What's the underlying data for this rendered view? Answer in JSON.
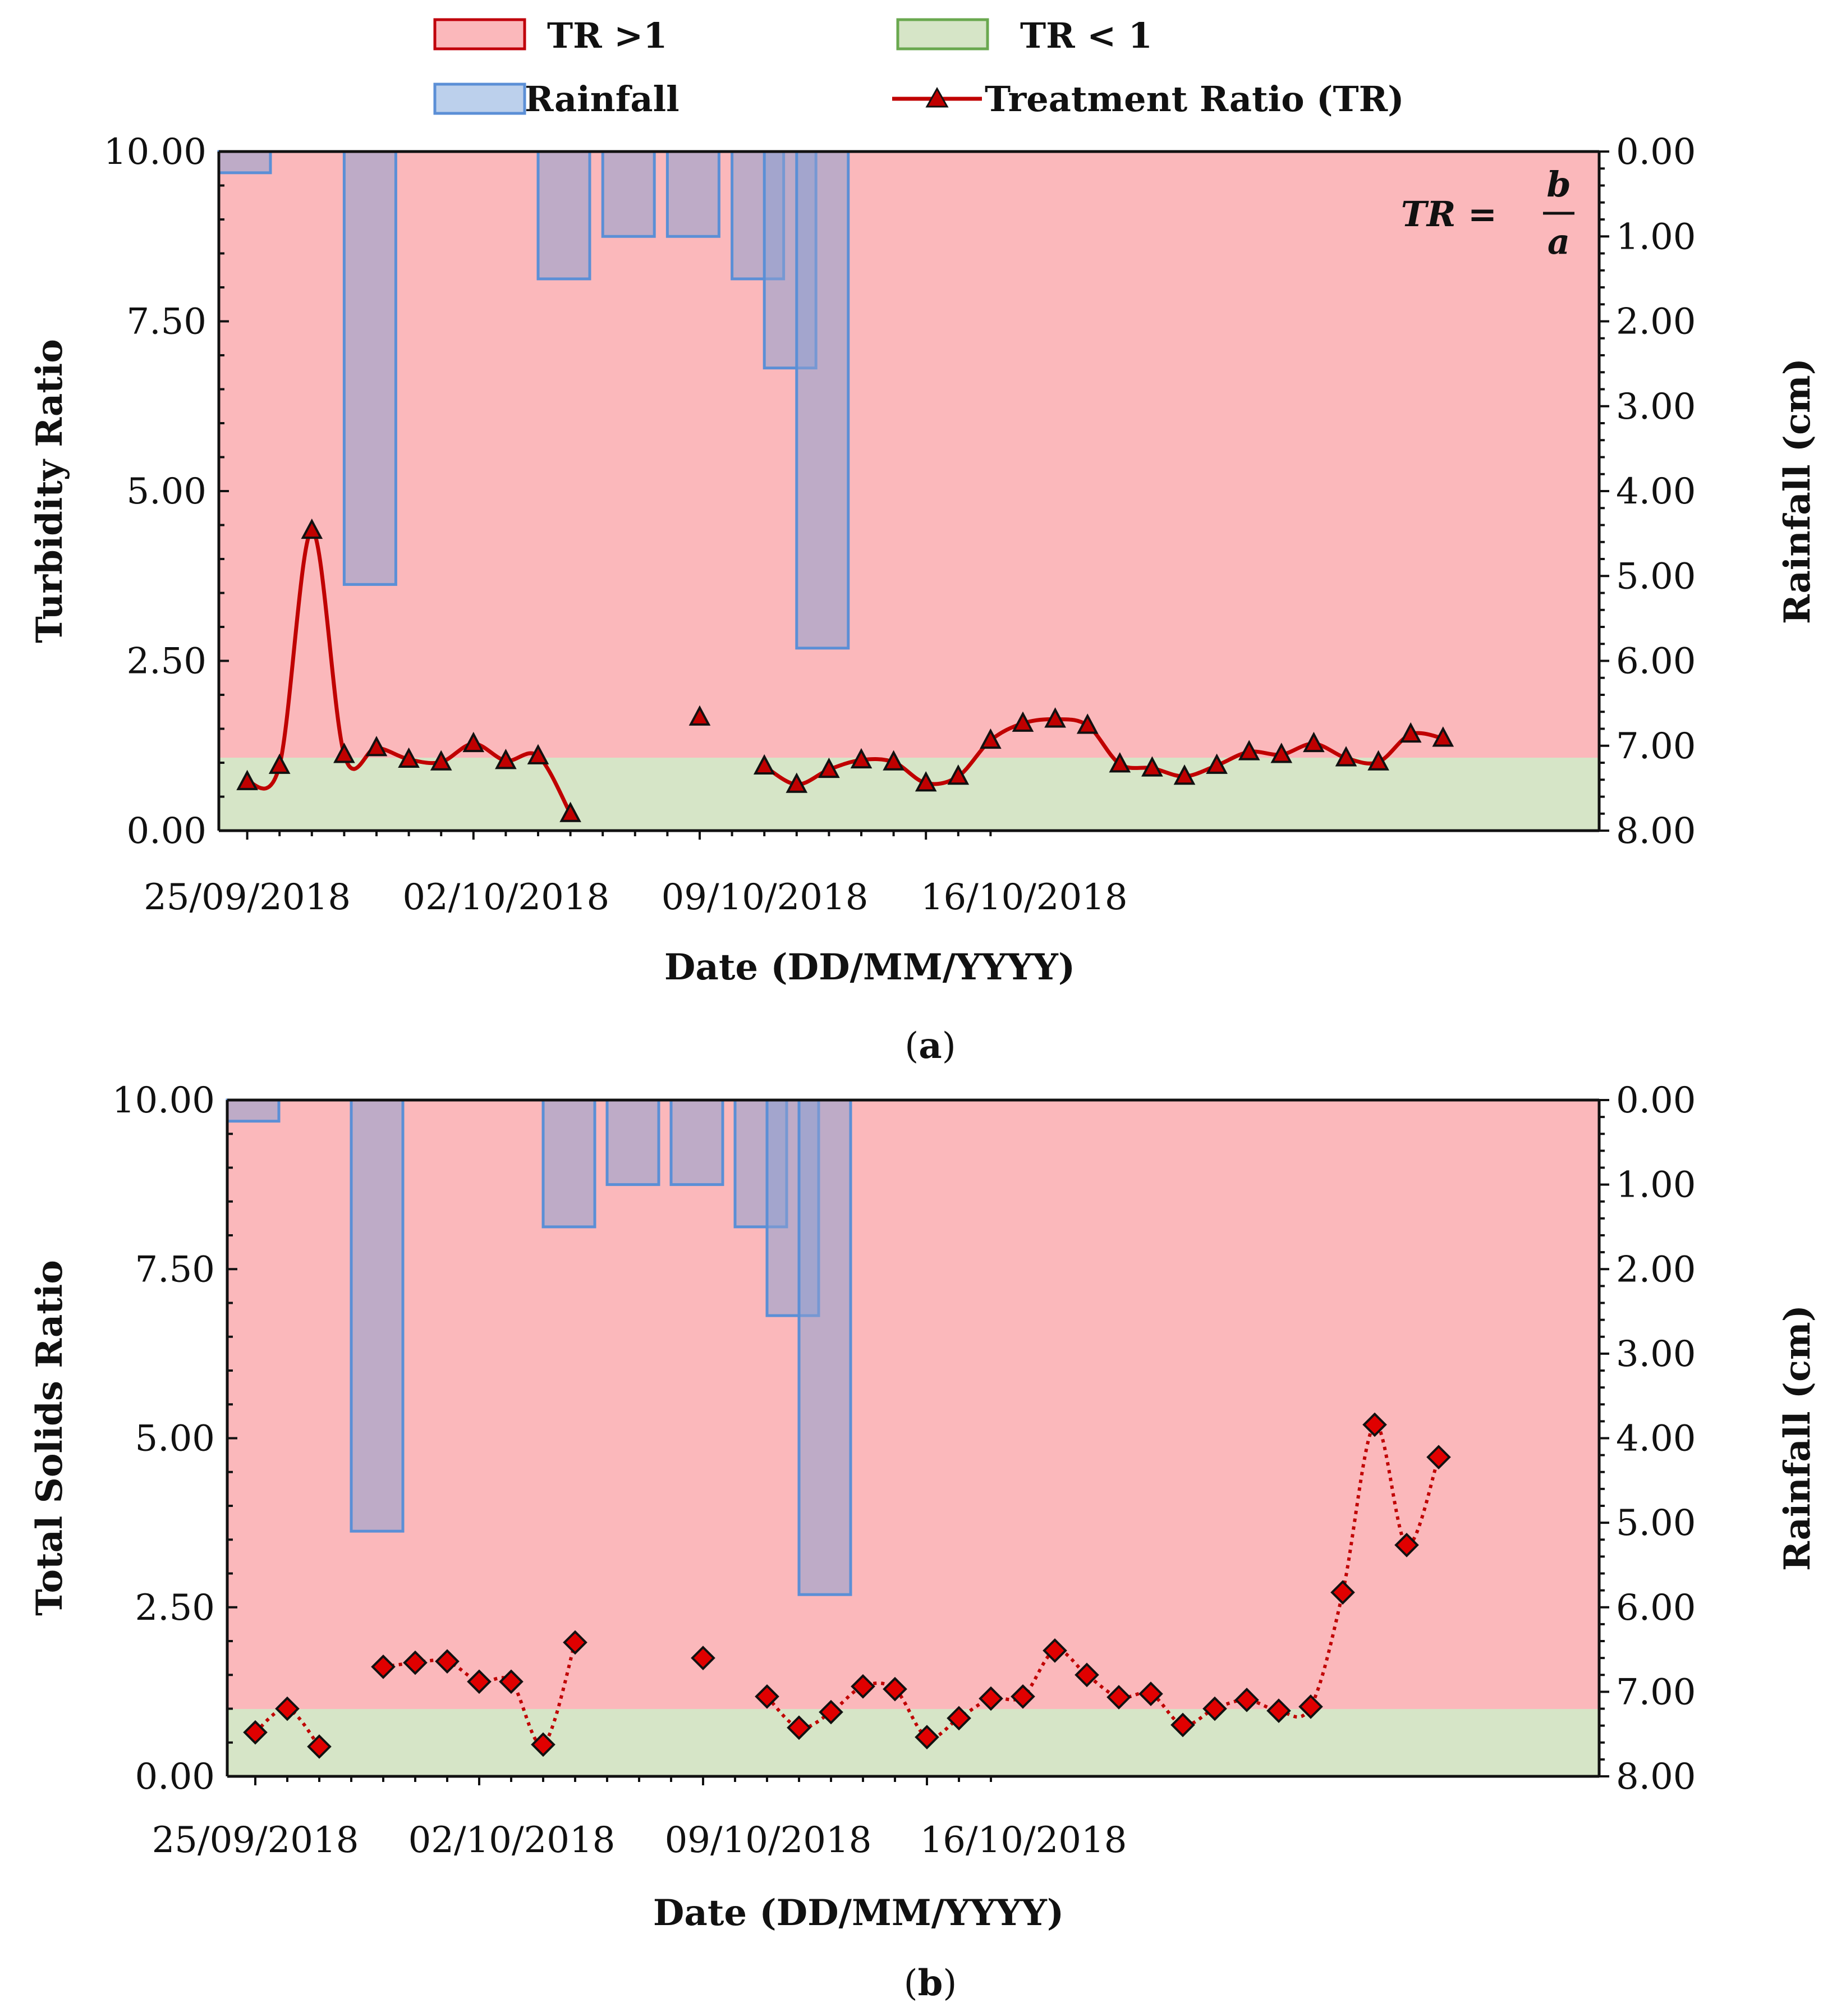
{
  "legend": {
    "tr_gt1": "TR >1",
    "tr_lt1": "TR < 1",
    "rainfall": "Rainfall",
    "treatment_ratio": "Treatment Ratio (TR)"
  },
  "colors": {
    "tr_gt1_fill": "#fbb8bb",
    "tr_gt1_border": "#c0000b",
    "tr_lt1_fill": "#d6e5c7",
    "tr_lt1_border": "#6aa84f",
    "rain_fill": "rgba(140,160,210,0.55)",
    "rain_border": "#5b8fd6",
    "series_line": "#c00000",
    "marker_fill_a": "#c00000",
    "marker_fill_b": "#e00000"
  },
  "chart_data": [
    {
      "type": "line",
      "panel_label": "a",
      "formula": {
        "lhs": "TR =",
        "numerator": "b",
        "denominator": "a"
      },
      "xlabel": "Date (DD/MM/YYYY)",
      "ylabel": "Turbidity Ratio",
      "y2label": "Rainfall (cm)",
      "ylim": [
        0,
        10
      ],
      "y2lim": [
        8,
        0
      ],
      "xlim": [
        "24/09/2018",
        "17/10/2018"
      ],
      "xticks": [
        "25/09/2018",
        "02/10/2018",
        "09/10/2018",
        "16/10/2018"
      ],
      "yticks": [
        "0.00",
        "2.50",
        "5.00",
        "7.50",
        "10.00"
      ],
      "y2ticks": [
        "0.00",
        "1.00",
        "2.00",
        "3.00",
        "4.00",
        "5.00",
        "6.00",
        "7.00",
        "8.00"
      ],
      "background_regions": [
        {
          "name": "TR >1",
          "from": 1.1,
          "to": 10
        },
        {
          "name": "TR < 1",
          "from": 0,
          "to": 1.1
        }
      ],
      "rainfall": [
        {
          "date": "24/09/2018",
          "cm": 0.25
        },
        {
          "date": "28/09/2018",
          "cm": 5.1
        },
        {
          "date": "04/10/2018",
          "cm": 1.5
        },
        {
          "date": "06/10/2018",
          "cm": 1.0
        },
        {
          "date": "08/10/2018",
          "cm": 1.0
        },
        {
          "date": "10/10/2018",
          "cm": 1.5
        },
        {
          "date": "11/10/2018",
          "cm": 2.55
        },
        {
          "date": "12/10/2018",
          "cm": 5.85
        }
      ],
      "series": [
        {
          "name": "Treatment Ratio (TR)",
          "segments": [
            [
              {
                "date": "25/09/2018",
                "value": 0.72
              },
              {
                "date": "26/09/2018",
                "value": 0.96
              },
              {
                "date": "27/09/2018",
                "value": 4.42
              },
              {
                "date": "28/09/2018",
                "value": 1.12
              },
              {
                "date": "29/09/2018",
                "value": 1.22
              },
              {
                "date": "30/09/2018",
                "value": 1.05
              },
              {
                "date": "01/10/2018",
                "value": 1.01
              },
              {
                "date": "02/10/2018",
                "value": 1.28
              },
              {
                "date": "03/10/2018",
                "value": 1.03
              },
              {
                "date": "04/10/2018",
                "value": 1.1
              },
              {
                "date": "05/10/2018",
                "value": 0.25
              }
            ],
            [
              {
                "date": "09/10/2018",
                "value": 1.67
              }
            ],
            [
              {
                "date": "11/10/2018",
                "value": 0.95
              },
              {
                "date": "12/10/2018",
                "value": 0.68
              },
              {
                "date": "13/10/2018",
                "value": 0.9
              },
              {
                "date": "14/10/2018",
                "value": 1.04
              },
              {
                "date": "15/10/2018",
                "value": 1.01
              },
              {
                "date": "16/10/2018",
                "value": 0.7
              },
              {
                "date": "17/10/2018",
                "value": 0.8
              },
              {
                "date": "18/10/2018",
                "value": 1.33
              },
              {
                "date": "19/10/2018",
                "value": 1.58
              },
              {
                "date": "20/10/2018",
                "value": 1.64
              },
              {
                "date": "21/10/2018",
                "value": 1.55
              },
              {
                "date": "22/10/2018",
                "value": 0.98
              },
              {
                "date": "23/10/2018",
                "value": 0.92
              },
              {
                "date": "24/10/2018",
                "value": 0.8
              },
              {
                "date": "25/10/2018",
                "value": 0.96
              },
              {
                "date": "26/10/2018",
                "value": 1.16
              },
              {
                "date": "27/10/2018",
                "value": 1.12
              },
              {
                "date": "28/10/2018",
                "value": 1.28
              },
              {
                "date": "29/10/2018",
                "value": 1.07
              },
              {
                "date": "30/10/2018",
                "value": 1.01
              },
              {
                "date": "31/10/2018",
                "value": 1.42
              },
              {
                "date": "01/11/2018",
                "value": 1.36
              }
            ]
          ]
        }
      ]
    },
    {
      "type": "line",
      "panel_label": "b",
      "xlabel": "Date (DD/MM/YYYY)",
      "ylabel": "Total Solids Ratio",
      "y2label": "Rainfall (cm)",
      "ylim": [
        0,
        10
      ],
      "y2lim": [
        8,
        0
      ],
      "xticks": [
        "25/09/2018",
        "02/10/2018",
        "09/10/2018",
        "16/10/2018"
      ],
      "yticks": [
        "0.00",
        "2.50",
        "5.00",
        "7.50",
        "10.00"
      ],
      "y2ticks": [
        "0.00",
        "1.00",
        "2.00",
        "3.00",
        "4.00",
        "5.00",
        "6.00",
        "7.00",
        "8.00"
      ],
      "background_regions": [
        {
          "name": "TR >1",
          "from": 1.0,
          "to": 10
        },
        {
          "name": "TR < 1",
          "from": 0,
          "to": 1.0
        }
      ],
      "rainfall": [
        {
          "date": "24/09/2018",
          "cm": 0.25
        },
        {
          "date": "28/09/2018",
          "cm": 5.1
        },
        {
          "date": "04/10/2018",
          "cm": 1.5
        },
        {
          "date": "06/10/2018",
          "cm": 1.0
        },
        {
          "date": "08/10/2018",
          "cm": 1.0
        },
        {
          "date": "10/10/2018",
          "cm": 1.5
        },
        {
          "date": "11/10/2018",
          "cm": 2.55
        },
        {
          "date": "12/10/2018",
          "cm": 5.85
        }
      ],
      "series": [
        {
          "segments": [
            [
              {
                "date": "25/09/2018",
                "value": 0.65
              },
              {
                "date": "26/09/2018",
                "value": 1.0
              },
              {
                "date": "27/09/2018",
                "value": 0.44
              }
            ],
            [
              {
                "date": "29/09/2018",
                "value": 1.62
              },
              {
                "date": "30/09/2018",
                "value": 1.68
              },
              {
                "date": "01/10/2018",
                "value": 1.7
              },
              {
                "date": "02/10/2018",
                "value": 1.4
              },
              {
                "date": "03/10/2018",
                "value": 1.4
              },
              {
                "date": "04/10/2018",
                "value": 0.47
              },
              {
                "date": "05/10/2018",
                "value": 1.98
              }
            ],
            [
              {
                "date": "09/10/2018",
                "value": 1.75
              }
            ],
            [
              {
                "date": "11/10/2018",
                "value": 1.18
              },
              {
                "date": "12/10/2018",
                "value": 0.72
              },
              {
                "date": "13/10/2018",
                "value": 0.95
              },
              {
                "date": "14/10/2018",
                "value": 1.33
              },
              {
                "date": "15/10/2018",
                "value": 1.29
              },
              {
                "date": "16/10/2018",
                "value": 0.58
              },
              {
                "date": "17/10/2018",
                "value": 0.86
              },
              {
                "date": "18/10/2018",
                "value": 1.15
              },
              {
                "date": "19/10/2018",
                "value": 1.18
              },
              {
                "date": "20/10/2018",
                "value": 1.86
              },
              {
                "date": "21/10/2018",
                "value": 1.5
              },
              {
                "date": "22/10/2018",
                "value": 1.17
              },
              {
                "date": "23/10/2018",
                "value": 1.22
              },
              {
                "date": "24/10/2018",
                "value": 0.76
              },
              {
                "date": "25/10/2018",
                "value": 1.0
              },
              {
                "date": "26/10/2018",
                "value": 1.13
              },
              {
                "date": "27/10/2018",
                "value": 0.97
              },
              {
                "date": "28/10/2018",
                "value": 1.03
              },
              {
                "date": "29/10/2018",
                "value": 2.72
              },
              {
                "date": "30/10/2018",
                "value": 5.2
              },
              {
                "date": "31/10/2018",
                "value": 3.42
              },
              {
                "date": "01/11/2018",
                "value": 4.72
              }
            ]
          ]
        }
      ]
    }
  ]
}
